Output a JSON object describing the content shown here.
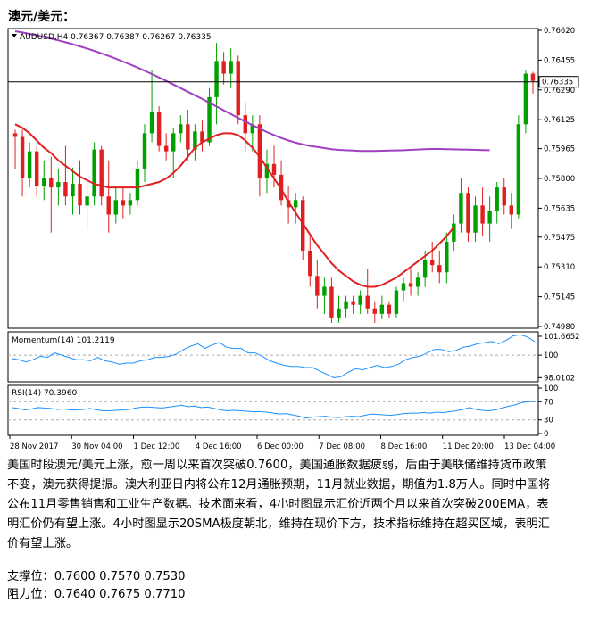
{
  "heading": "澳元/美元：",
  "chart_data": {
    "type": "candlestick",
    "symbol_line": "AUDUSD,H4  0.76367 0.76387 0.76267 0.76335",
    "current_price_label": "0.76335",
    "current_price": 0.76335,
    "price_ticks": [
      "0.76620",
      "0.76455",
      "0.76290",
      "0.76125",
      "0.75965",
      "0.75800",
      "0.75635",
      "0.75475",
      "0.75310",
      "0.75145",
      "0.74980"
    ],
    "ylim": [
      0.7498,
      0.7662
    ],
    "x_labels": [
      "28 Nov 2017",
      "30 Nov 04:00",
      "1 Dec 12:00",
      "4 Dec 16:00",
      "6 Dec 00:00",
      "7 Dec 08:00",
      "8 Dec 16:00",
      "11 Dec 20:00",
      "13 Dec 04:00"
    ],
    "candles": [
      {
        "o": 0.7605,
        "h": 0.7607,
        "l": 0.7585,
        "c": 0.7603
      },
      {
        "o": 0.7603,
        "h": 0.7607,
        "l": 0.757,
        "c": 0.758
      },
      {
        "o": 0.758,
        "h": 0.76,
        "l": 0.7575,
        "c": 0.7595
      },
      {
        "o": 0.7595,
        "h": 0.7598,
        "l": 0.757,
        "c": 0.7576
      },
      {
        "o": 0.7576,
        "h": 0.759,
        "l": 0.7568,
        "c": 0.758
      },
      {
        "o": 0.758,
        "h": 0.7592,
        "l": 0.755,
        "c": 0.7575
      },
      {
        "o": 0.7575,
        "h": 0.7585,
        "l": 0.7565,
        "c": 0.7578
      },
      {
        "o": 0.7578,
        "h": 0.7598,
        "l": 0.7565,
        "c": 0.757
      },
      {
        "o": 0.757,
        "h": 0.7586,
        "l": 0.756,
        "c": 0.7577
      },
      {
        "o": 0.7577,
        "h": 0.759,
        "l": 0.756,
        "c": 0.7565
      },
      {
        "o": 0.7565,
        "h": 0.758,
        "l": 0.7552,
        "c": 0.757
      },
      {
        "o": 0.757,
        "h": 0.76,
        "l": 0.7565,
        "c": 0.7596
      },
      {
        "o": 0.7596,
        "h": 0.7598,
        "l": 0.7565,
        "c": 0.757
      },
      {
        "o": 0.757,
        "h": 0.759,
        "l": 0.755,
        "c": 0.756
      },
      {
        "o": 0.756,
        "h": 0.7576,
        "l": 0.7555,
        "c": 0.7568
      },
      {
        "o": 0.7568,
        "h": 0.7575,
        "l": 0.7558,
        "c": 0.7565
      },
      {
        "o": 0.7565,
        "h": 0.7572,
        "l": 0.756,
        "c": 0.7568
      },
      {
        "o": 0.7568,
        "h": 0.759,
        "l": 0.7565,
        "c": 0.7585
      },
      {
        "o": 0.7585,
        "h": 0.761,
        "l": 0.7578,
        "c": 0.7605
      },
      {
        "o": 0.7605,
        "h": 0.764,
        "l": 0.76,
        "c": 0.7617
      },
      {
        "o": 0.7617,
        "h": 0.762,
        "l": 0.7595,
        "c": 0.7598
      },
      {
        "o": 0.7598,
        "h": 0.7605,
        "l": 0.759,
        "c": 0.7595
      },
      {
        "o": 0.7595,
        "h": 0.7608,
        "l": 0.758,
        "c": 0.7605
      },
      {
        "o": 0.7605,
        "h": 0.7615,
        "l": 0.76,
        "c": 0.761
      },
      {
        "o": 0.761,
        "h": 0.7618,
        "l": 0.759,
        "c": 0.7596
      },
      {
        "o": 0.7596,
        "h": 0.761,
        "l": 0.759,
        "c": 0.7606
      },
      {
        "o": 0.7606,
        "h": 0.7612,
        "l": 0.7595,
        "c": 0.76
      },
      {
        "o": 0.76,
        "h": 0.763,
        "l": 0.7598,
        "c": 0.7625
      },
      {
        "o": 0.7625,
        "h": 0.7655,
        "l": 0.761,
        "c": 0.7645
      },
      {
        "o": 0.7645,
        "h": 0.765,
        "l": 0.7632,
        "c": 0.7638
      },
      {
        "o": 0.7638,
        "h": 0.7652,
        "l": 0.763,
        "c": 0.7645
      },
      {
        "o": 0.7645,
        "h": 0.7648,
        "l": 0.761,
        "c": 0.7615
      },
      {
        "o": 0.7615,
        "h": 0.7622,
        "l": 0.7595,
        "c": 0.7605
      },
      {
        "o": 0.7605,
        "h": 0.7615,
        "l": 0.7595,
        "c": 0.761
      },
      {
        "o": 0.761,
        "h": 0.7615,
        "l": 0.757,
        "c": 0.758
      },
      {
        "o": 0.758,
        "h": 0.7596,
        "l": 0.7572,
        "c": 0.7588
      },
      {
        "o": 0.7588,
        "h": 0.7598,
        "l": 0.7575,
        "c": 0.7582
      },
      {
        "o": 0.7582,
        "h": 0.759,
        "l": 0.7565,
        "c": 0.7568
      },
      {
        "o": 0.7568,
        "h": 0.7576,
        "l": 0.7555,
        "c": 0.7564
      },
      {
        "o": 0.7564,
        "h": 0.7572,
        "l": 0.7555,
        "c": 0.7568
      },
      {
        "o": 0.7568,
        "h": 0.757,
        "l": 0.7535,
        "c": 0.754
      },
      {
        "o": 0.754,
        "h": 0.7548,
        "l": 0.752,
        "c": 0.7526
      },
      {
        "o": 0.7526,
        "h": 0.7535,
        "l": 0.7508,
        "c": 0.7515
      },
      {
        "o": 0.7515,
        "h": 0.7525,
        "l": 0.7505,
        "c": 0.752
      },
      {
        "o": 0.752,
        "h": 0.7525,
        "l": 0.75,
        "c": 0.7503
      },
      {
        "o": 0.7503,
        "h": 0.7515,
        "l": 0.75,
        "c": 0.7508
      },
      {
        "o": 0.7508,
        "h": 0.7515,
        "l": 0.7503,
        "c": 0.7512
      },
      {
        "o": 0.7512,
        "h": 0.7515,
        "l": 0.7505,
        "c": 0.751
      },
      {
        "o": 0.751,
        "h": 0.7518,
        "l": 0.7505,
        "c": 0.7515
      },
      {
        "o": 0.7515,
        "h": 0.753,
        "l": 0.7505,
        "c": 0.7508
      },
      {
        "o": 0.7508,
        "h": 0.7512,
        "l": 0.75,
        "c": 0.7505
      },
      {
        "o": 0.7505,
        "h": 0.7515,
        "l": 0.7502,
        "c": 0.751
      },
      {
        "o": 0.751,
        "h": 0.7512,
        "l": 0.7503,
        "c": 0.7505
      },
      {
        "o": 0.7505,
        "h": 0.752,
        "l": 0.7503,
        "c": 0.7518
      },
      {
        "o": 0.7518,
        "h": 0.7525,
        "l": 0.7512,
        "c": 0.7522
      },
      {
        "o": 0.7522,
        "h": 0.753,
        "l": 0.7515,
        "c": 0.752
      },
      {
        "o": 0.752,
        "h": 0.7528,
        "l": 0.7515,
        "c": 0.7525
      },
      {
        "o": 0.7525,
        "h": 0.754,
        "l": 0.752,
        "c": 0.7535
      },
      {
        "o": 0.7535,
        "h": 0.7545,
        "l": 0.7528,
        "c": 0.7532
      },
      {
        "o": 0.7532,
        "h": 0.754,
        "l": 0.7522,
        "c": 0.7528
      },
      {
        "o": 0.7528,
        "h": 0.755,
        "l": 0.7522,
        "c": 0.7545
      },
      {
        "o": 0.7545,
        "h": 0.756,
        "l": 0.754,
        "c": 0.7555
      },
      {
        "o": 0.7555,
        "h": 0.758,
        "l": 0.755,
        "c": 0.7572
      },
      {
        "o": 0.7572,
        "h": 0.7575,
        "l": 0.7545,
        "c": 0.755
      },
      {
        "o": 0.755,
        "h": 0.757,
        "l": 0.7545,
        "c": 0.7565
      },
      {
        "o": 0.7565,
        "h": 0.7575,
        "l": 0.7548,
        "c": 0.7555
      },
      {
        "o": 0.7555,
        "h": 0.757,
        "l": 0.7545,
        "c": 0.7562
      },
      {
        "o": 0.7562,
        "h": 0.7578,
        "l": 0.7555,
        "c": 0.7575
      },
      {
        "o": 0.7575,
        "h": 0.758,
        "l": 0.756,
        "c": 0.7565
      },
      {
        "o": 0.7565,
        "h": 0.7572,
        "l": 0.7552,
        "c": 0.756
      },
      {
        "o": 0.756,
        "h": 0.7615,
        "l": 0.7558,
        "c": 0.761
      },
      {
        "o": 0.761,
        "h": 0.764,
        "l": 0.7605,
        "c": 0.7638
      },
      {
        "o": 0.7638,
        "h": 0.7639,
        "l": 0.7627,
        "c": 0.7634
      }
    ],
    "ma_200": [
      0.76615,
      0.76608,
      0.766,
      0.76592,
      0.76583,
      0.76574,
      0.76564,
      0.76554,
      0.76543,
      0.76531,
      0.76519,
      0.76506,
      0.76492,
      0.76478,
      0.76463,
      0.76447,
      0.76431,
      0.76414,
      0.76396,
      0.76378,
      0.76359,
      0.7634,
      0.7632,
      0.763,
      0.7628,
      0.7626,
      0.7624,
      0.76219,
      0.76198,
      0.76177,
      0.76156,
      0.76135,
      0.76115,
      0.76095,
      0.76076,
      0.76057,
      0.7604,
      0.76024,
      0.7601,
      0.75998,
      0.75988,
      0.7598,
      0.75974,
      0.75968,
      0.75962,
      0.75958,
      0.75956,
      0.75954,
      0.75952,
      0.75952,
      0.75952,
      0.75953,
      0.75954,
      0.75955,
      0.75956,
      0.75958,
      0.7596,
      0.75962,
      0.75963,
      0.75963,
      0.75962,
      0.75961,
      0.7596,
      0.75959,
      0.75958,
      0.75957,
      0.75956
    ],
    "ma_20": [
      0.761,
      0.7608,
      0.7605,
      0.7601,
      0.7597,
      0.7594,
      0.759,
      0.7587,
      0.7584,
      0.7581,
      0.7579,
      0.7577,
      0.7576,
      0.7575,
      0.7575,
      0.7575,
      0.7575,
      0.7575,
      0.7576,
      0.7577,
      0.7578,
      0.758,
      0.7583,
      0.7587,
      0.7592,
      0.7597,
      0.76,
      0.7602,
      0.7604,
      0.7605,
      0.7605,
      0.7604,
      0.7601,
      0.7597,
      0.7592,
      0.7586,
      0.758,
      0.7574,
      0.7567,
      0.7561,
      0.7555,
      0.7549,
      0.7543,
      0.7538,
      0.7533,
      0.7529,
      0.7526,
      0.7523,
      0.7521,
      0.752,
      0.752,
      0.7521,
      0.7523,
      0.7525,
      0.7528,
      0.7531,
      0.7534,
      0.7537,
      0.754,
      0.7544,
      0.7548,
      0.7553
    ],
    "momentum": {
      "label": "Momentum(14) 101.2119",
      "ticks": [
        "101.6652",
        "100",
        "98.0102"
      ],
      "ylim": [
        97.8,
        101.9
      ],
      "values": [
        99.7,
        99.6,
        99.4,
        99.6,
        99.9,
        99.8,
        100.2,
        100.0,
        99.8,
        99.6,
        99.6,
        99.5,
        99.8,
        99.5,
        99.4,
        99.2,
        99.3,
        99.3,
        99.5,
        99.6,
        99.8,
        99.8,
        99.9,
        100.1,
        100.5,
        100.8,
        101.0,
        100.6,
        100.9,
        101.1,
        100.7,
        100.6,
        100.6,
        100.2,
        100.2,
        99.9,
        99.5,
        99.3,
        99.1,
        99.0,
        99.0,
        98.9,
        98.9,
        98.6,
        98.3,
        98.0,
        98.1,
        98.5,
        98.8,
        98.7,
        98.9,
        99.1,
        98.9,
        99.0,
        99.2,
        99.6,
        99.8,
        99.9,
        100.2,
        100.5,
        100.5,
        100.3,
        100.4,
        100.7,
        100.8,
        101.0,
        101.1,
        101.2,
        101.0,
        101.3,
        101.7,
        101.8,
        101.6,
        101.2
      ]
    },
    "rsi": {
      "label": "RSI(14) 70.3960",
      "ticks": [
        "100",
        "70",
        "30",
        "0"
      ],
      "ylim": [
        0,
        100
      ],
      "values": [
        57,
        55,
        52,
        54,
        57,
        56,
        55,
        53,
        54,
        52,
        52,
        53,
        55,
        52,
        50,
        50,
        51,
        52,
        53,
        56,
        58,
        58,
        57,
        56,
        58,
        60,
        62,
        59,
        60,
        57,
        58,
        55,
        52,
        50,
        51,
        50,
        49,
        48,
        48,
        47,
        45,
        43,
        44,
        41,
        38,
        34,
        36,
        37,
        38,
        36,
        35,
        37,
        38,
        37,
        40,
        43,
        42,
        41,
        40,
        42,
        44,
        45,
        45,
        46,
        45,
        47,
        46,
        48,
        50,
        53,
        57,
        53,
        51,
        50,
        52,
        56,
        60,
        63,
        68,
        70,
        70
      ]
    }
  },
  "paragraph": [
    "美国时段澳元/美元上涨，愈一周以来首次突破0.7600，美国通胀数据疲弱，后由于美联储维持货币政策",
    "不变，澳元获得提振。澳大利亚日内将公布12月通胀预期，11月就业数据，期值为1.8万人。同时中国将",
    "公布11月零售销售和工业生产数据。技术面来看，4小时图显示汇价近两个月以来首次突破200EMA，表",
    "明汇价仍有望上涨。4小时图显示20SMA极度朝北，维持在现价下方，技术指标维持在超买区域，表明汇",
    "价有望上涨。"
  ],
  "support": "支撑位：0.7600 0.7570 0.7530",
  "resistance": "阻力位：0.7640 0.7675 0.7710",
  "colors": {
    "bull": "#00a000",
    "bear": "#e02020",
    "ma_fast": "#e02020",
    "ma_slow": "#a040c0",
    "indicator": "#1e90ff",
    "grid": "#aaaaaa"
  }
}
